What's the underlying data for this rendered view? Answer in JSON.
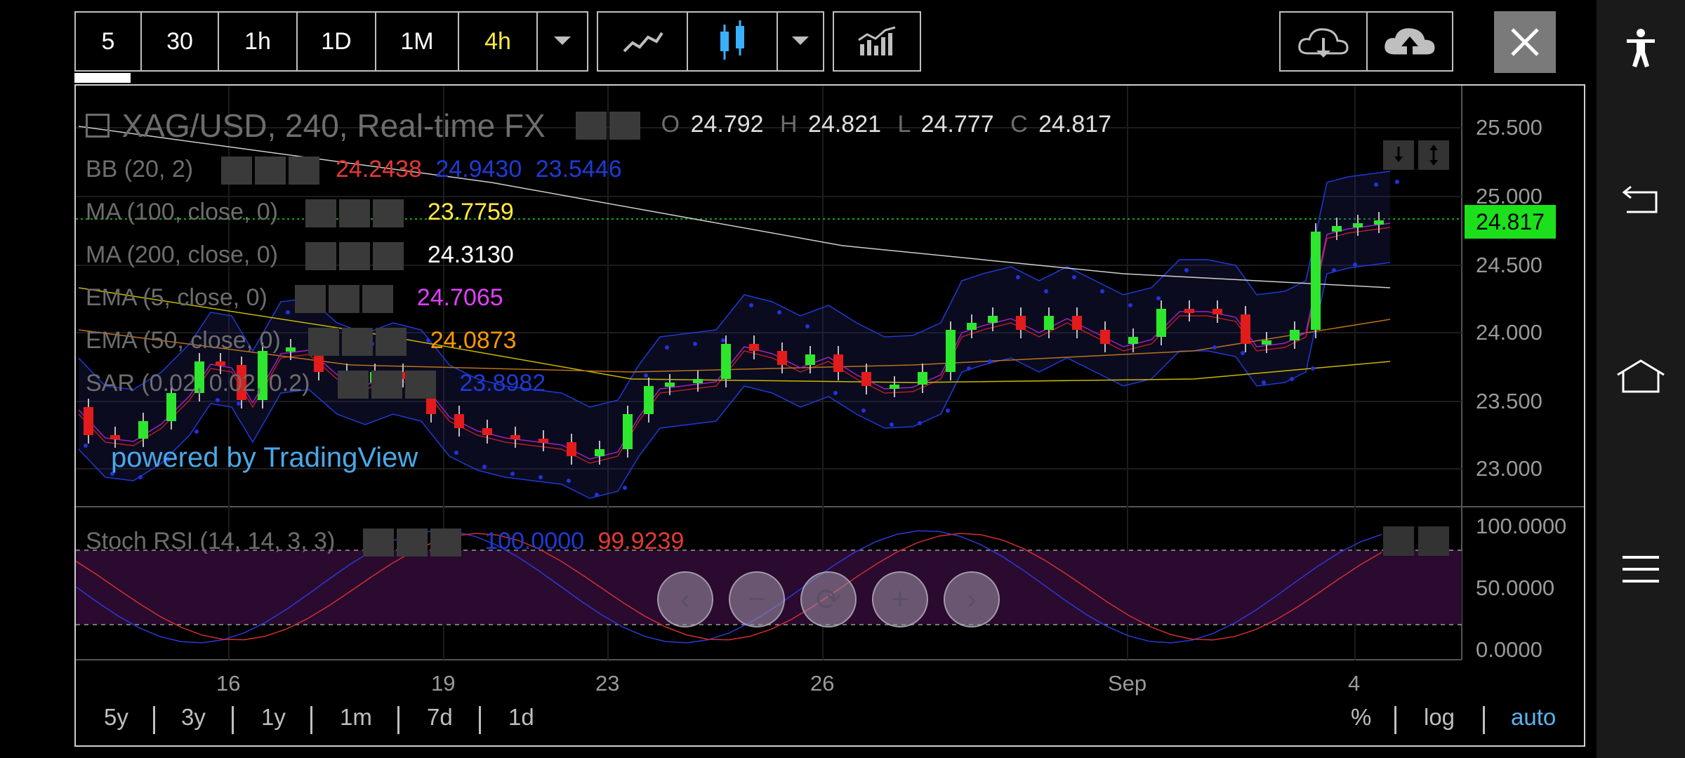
{
  "toolbar": {
    "intervals": [
      "5",
      "30",
      "1h",
      "1D",
      "1M",
      "4h"
    ],
    "active_interval": "4h"
  },
  "chart": {
    "symbol_title": "XAG/USD, 240, Real-time FX",
    "ohlc": {
      "o_label": "O",
      "o": "24.792",
      "h_label": "H",
      "h": "24.821",
      "l_label": "L",
      "l": "24.777",
      "c_label": "C",
      "c": "24.817"
    },
    "indicators": [
      {
        "name": "BB (20, 2)",
        "values": [
          "24.2438",
          "24.9430",
          "23.5446"
        ],
        "colors": [
          "#e53935",
          "#1e3ad6",
          "#1e3ad6"
        ]
      },
      {
        "name": "MA (100, close, 0)",
        "values": [
          "23.7759"
        ],
        "colors": [
          "#ffeb3b"
        ]
      },
      {
        "name": "MA (200, close, 0)",
        "values": [
          "24.3130"
        ],
        "colors": [
          "#ffffff"
        ]
      },
      {
        "name": "EMA (5, close, 0)",
        "values": [
          "24.7065"
        ],
        "colors": [
          "#e040fb"
        ]
      },
      {
        "name": "EMA (50, close, 0)",
        "values": [
          "24.0873"
        ],
        "colors": [
          "#ff9800"
        ]
      },
      {
        "name": "SAR (0.02, 0.02, 0.2)",
        "values": [
          "23.8982"
        ],
        "colors": [
          "#1e3ad6"
        ]
      }
    ],
    "watermark": "powered by TradingView",
    "price_axis": [
      "25.500",
      "25.000",
      "24.500",
      "24.000",
      "23.500",
      "23.000"
    ],
    "current_price": "24.817",
    "stoch": {
      "name": "Stoch RSI (14, 14, 3, 3)",
      "values": [
        "100.0000",
        "99.9239"
      ],
      "colors": [
        "#1e3ad6",
        "#e53935"
      ]
    },
    "stoch_axis": [
      "100.0000",
      "50.0000",
      "0.0000"
    ],
    "date_axis": [
      "16",
      "19",
      "23",
      "26",
      "Sep",
      "4"
    ]
  },
  "ranges": [
    "5y",
    "3y",
    "1y",
    "1m",
    "7d",
    "1d"
  ],
  "scale_options": {
    "percent": "%",
    "log": "log",
    "auto": "auto"
  },
  "colors": {
    "up": "#2ee62e",
    "down": "#e21b1b",
    "price_tag": "#1be01b",
    "active": "#ffeb3b",
    "auto": "#5ab4f0"
  }
}
